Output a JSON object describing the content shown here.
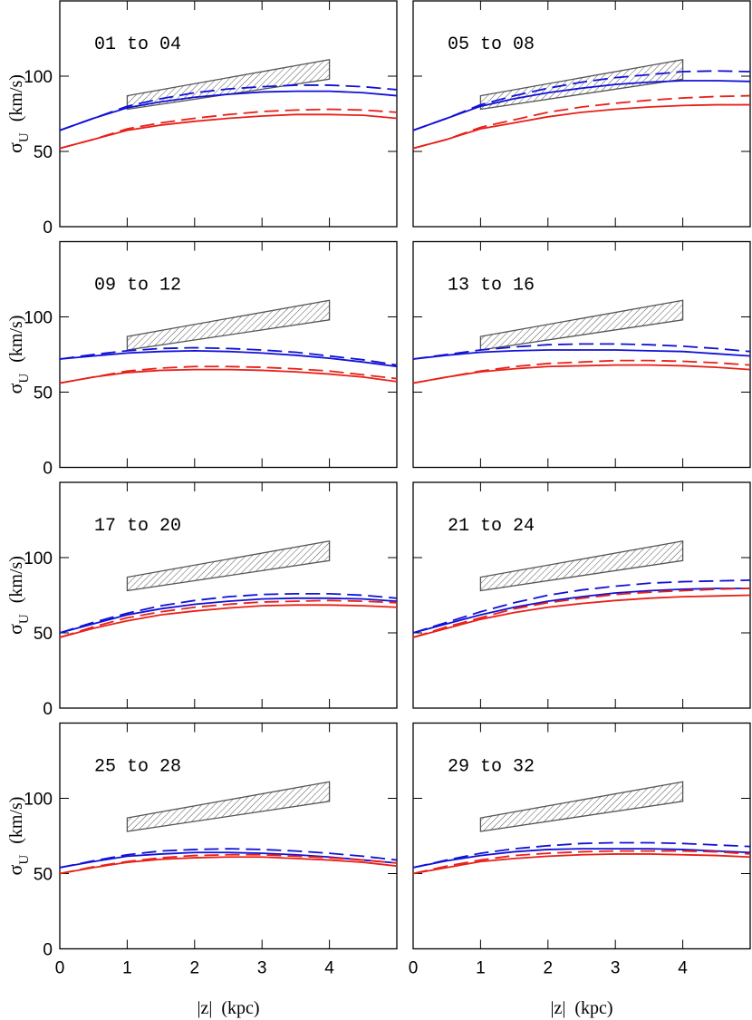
{
  "chart_data": [
    {
      "type": "line",
      "title": "01 to 04",
      "y_label": {
        "symbol": "σ",
        "subscript": "U",
        "unit": "(km/s)"
      },
      "show_xtick_labels": false,
      "show_ytick_labels": true,
      "x": [
        0,
        0.5,
        1,
        1.5,
        2,
        2.5,
        3,
        3.5,
        4,
        4.5,
        5
      ],
      "xlim": [
        0,
        5
      ],
      "ylim": [
        0,
        150
      ],
      "xticks": [
        0,
        1,
        2,
        3,
        4
      ],
      "yticks": [
        0,
        50,
        100
      ],
      "band": {
        "x": [
          1,
          4
        ],
        "lower": [
          78,
          98
        ],
        "upper": [
          87,
          111
        ],
        "color": "#555555"
      },
      "series": [
        {
          "color": "#1010d8",
          "dashed": false,
          "values": [
            64,
            72,
            79,
            83,
            86,
            88,
            89.5,
            90,
            90,
            89,
            87
          ]
        },
        {
          "color": "#1010d8",
          "dashed": true,
          "values": [
            64,
            72,
            80,
            85,
            89,
            91.5,
            93,
            94,
            94,
            93,
            91
          ]
        },
        {
          "color": "#e82018",
          "dashed": false,
          "values": [
            52,
            58,
            64,
            67.5,
            70,
            72,
            73.5,
            74.5,
            74.5,
            74,
            72
          ]
        },
        {
          "color": "#e82018",
          "dashed": true,
          "values": [
            52,
            58,
            65,
            69,
            72,
            74.5,
            76.5,
            77.5,
            78,
            77.5,
            76
          ]
        }
      ]
    },
    {
      "type": "line",
      "title": "05 to 08",
      "show_xtick_labels": false,
      "show_ytick_labels": false,
      "x": [
        0,
        0.5,
        1,
        1.5,
        2,
        2.5,
        3,
        3.5,
        4,
        4.5,
        5
      ],
      "xlim": [
        0,
        5
      ],
      "ylim": [
        0,
        150
      ],
      "xticks": [
        0,
        1,
        2,
        3,
        4
      ],
      "yticks": [
        0,
        50,
        100
      ],
      "band": {
        "x": [
          1,
          4
        ],
        "lower": [
          78,
          98
        ],
        "upper": [
          87,
          111
        ],
        "color": "#555555"
      },
      "series": [
        {
          "color": "#1010d8",
          "dashed": false,
          "values": [
            64,
            72,
            80,
            85,
            89,
            92,
            94.5,
            96,
            97,
            97,
            96.5
          ]
        },
        {
          "color": "#1010d8",
          "dashed": true,
          "values": [
            64,
            72,
            81,
            87,
            92,
            96,
            99,
            101,
            103,
            103.5,
            103
          ]
        },
        {
          "color": "#e82018",
          "dashed": false,
          "values": [
            52,
            58,
            65,
            69,
            73,
            76,
            78,
            79.5,
            80.5,
            81,
            81
          ]
        },
        {
          "color": "#e82018",
          "dashed": true,
          "values": [
            52,
            58,
            66,
            71,
            76,
            79.5,
            82,
            84,
            85.5,
            86.5,
            87
          ]
        }
      ]
    },
    {
      "type": "line",
      "title": "09 to 12",
      "y_label": {
        "symbol": "σ",
        "subscript": "U",
        "unit": "(km/s)"
      },
      "show_xtick_labels": false,
      "show_ytick_labels": true,
      "x": [
        0,
        0.5,
        1,
        1.5,
        2,
        2.5,
        3,
        3.5,
        4,
        4.5,
        5
      ],
      "xlim": [
        0,
        5
      ],
      "ylim": [
        0,
        150
      ],
      "xticks": [
        0,
        1,
        2,
        3,
        4
      ],
      "yticks": [
        0,
        50,
        100
      ],
      "band": {
        "x": [
          1,
          4
        ],
        "lower": [
          78,
          98
        ],
        "upper": [
          87,
          111
        ],
        "color": "#555555"
      },
      "series": [
        {
          "color": "#1010d8",
          "dashed": false,
          "values": [
            72,
            74,
            76,
            77,
            77.5,
            77,
            76,
            74.5,
            72.5,
            70,
            67
          ]
        },
        {
          "color": "#1010d8",
          "dashed": true,
          "values": [
            72,
            75,
            77.5,
            79,
            79.5,
            79,
            78,
            76.5,
            74,
            71.5,
            68
          ]
        },
        {
          "color": "#e82018",
          "dashed": false,
          "values": [
            56,
            60,
            63,
            64.5,
            65,
            65,
            64.5,
            63.5,
            62,
            60,
            57
          ]
        },
        {
          "color": "#e82018",
          "dashed": true,
          "values": [
            56,
            60,
            64,
            66,
            67,
            67,
            66.5,
            65.5,
            64,
            61.5,
            59
          ]
        }
      ]
    },
    {
      "type": "line",
      "title": "13 to 16",
      "show_xtick_labels": false,
      "show_ytick_labels": false,
      "x": [
        0,
        0.5,
        1,
        1.5,
        2,
        2.5,
        3,
        3.5,
        4,
        4.5,
        5
      ],
      "xlim": [
        0,
        5
      ],
      "ylim": [
        0,
        150
      ],
      "xticks": [
        0,
        1,
        2,
        3,
        4
      ],
      "yticks": [
        0,
        50,
        100
      ],
      "band": {
        "x": [
          1,
          4
        ],
        "lower": [
          78,
          98
        ],
        "upper": [
          87,
          111
        ],
        "color": "#555555"
      },
      "series": [
        {
          "color": "#1010d8",
          "dashed": false,
          "values": [
            72,
            74.5,
            76.5,
            77.5,
            78,
            78,
            78,
            77.5,
            77,
            75.5,
            74
          ]
        },
        {
          "color": "#1010d8",
          "dashed": true,
          "values": [
            72,
            75,
            78,
            80,
            81.5,
            82,
            82,
            81.5,
            80.5,
            79,
            77
          ]
        },
        {
          "color": "#e82018",
          "dashed": false,
          "values": [
            56,
            60,
            63.5,
            65.5,
            67,
            67.5,
            68,
            68,
            67.5,
            66.5,
            65
          ]
        },
        {
          "color": "#e82018",
          "dashed": true,
          "values": [
            56,
            60,
            64,
            67,
            69,
            70,
            71,
            71,
            70.5,
            69.5,
            68
          ]
        }
      ]
    },
    {
      "type": "line",
      "title": "17 to 20",
      "y_label": {
        "symbol": "σ",
        "subscript": "U",
        "unit": "(km/s)"
      },
      "show_xtick_labels": false,
      "show_ytick_labels": true,
      "x": [
        0,
        0.5,
        1,
        1.5,
        2,
        2.5,
        3,
        3.5,
        4,
        4.5,
        5
      ],
      "xlim": [
        0,
        5
      ],
      "ylim": [
        0,
        150
      ],
      "xticks": [
        0,
        1,
        2,
        3,
        4
      ],
      "yticks": [
        0,
        50,
        100
      ],
      "band": {
        "x": [
          1,
          4
        ],
        "lower": [
          78,
          98
        ],
        "upper": [
          87,
          111
        ],
        "color": "#555555"
      },
      "series": [
        {
          "color": "#1010d8",
          "dashed": false,
          "values": [
            50,
            56,
            62,
            66,
            69,
            71,
            72.5,
            73,
            73,
            72.5,
            71
          ]
        },
        {
          "color": "#1010d8",
          "dashed": true,
          "values": [
            50,
            57,
            63,
            68,
            71.5,
            74,
            75.5,
            76,
            76,
            75,
            73
          ]
        },
        {
          "color": "#e82018",
          "dashed": false,
          "values": [
            47,
            53,
            58,
            62,
            64.5,
            66.5,
            68,
            68.5,
            68.5,
            68,
            67
          ]
        },
        {
          "color": "#e82018",
          "dashed": true,
          "values": [
            47,
            54,
            60,
            64,
            67,
            69,
            70.5,
            71,
            71.5,
            71,
            70
          ]
        }
      ]
    },
    {
      "type": "line",
      "title": "21 to 24",
      "show_xtick_labels": false,
      "show_ytick_labels": false,
      "x": [
        0,
        0.5,
        1,
        1.5,
        2,
        2.5,
        3,
        3.5,
        4,
        4.5,
        5
      ],
      "xlim": [
        0,
        5
      ],
      "ylim": [
        0,
        150
      ],
      "xticks": [
        0,
        1,
        2,
        3,
        4
      ],
      "yticks": [
        0,
        50,
        100
      ],
      "band": {
        "x": [
          1,
          4
        ],
        "lower": [
          78,
          98
        ],
        "upper": [
          87,
          111
        ],
        "color": "#555555"
      },
      "series": [
        {
          "color": "#1010d8",
          "dashed": false,
          "values": [
            50,
            56,
            62,
            67,
            71,
            74,
            76.5,
            78,
            79,
            79.5,
            79.5
          ]
        },
        {
          "color": "#1010d8",
          "dashed": true,
          "values": [
            50,
            57,
            64,
            70,
            75,
            78.5,
            81,
            83,
            84,
            84.5,
            85
          ]
        },
        {
          "color": "#e82018",
          "dashed": false,
          "values": [
            47,
            53,
            59,
            63.5,
            67,
            69.5,
            71.5,
            73,
            74,
            74.5,
            75
          ]
        },
        {
          "color": "#e82018",
          "dashed": true,
          "values": [
            47,
            54,
            60,
            66,
            70,
            73,
            75.5,
            77,
            78,
            79,
            79.5
          ]
        }
      ]
    },
    {
      "type": "line",
      "title": "25 to 28",
      "y_label": {
        "symbol": "σ",
        "subscript": "U",
        "unit": "(km/s)"
      },
      "x_label": "|z|  (kpc)",
      "show_xtick_labels": true,
      "show_ytick_labels": true,
      "x": [
        0,
        0.5,
        1,
        1.5,
        2,
        2.5,
        3,
        3.5,
        4,
        4.5,
        5
      ],
      "xlim": [
        0,
        5
      ],
      "ylim": [
        0,
        150
      ],
      "xticks": [
        0,
        1,
        2,
        3,
        4
      ],
      "yticks": [
        0,
        50,
        100
      ],
      "band": {
        "x": [
          1,
          4
        ],
        "lower": [
          78,
          98
        ],
        "upper": [
          87,
          111
        ],
        "color": "#555555"
      },
      "series": [
        {
          "color": "#1010d8",
          "dashed": false,
          "values": [
            54,
            58,
            61.5,
            63,
            64,
            64,
            63.5,
            62.5,
            61,
            59,
            57
          ]
        },
        {
          "color": "#1010d8",
          "dashed": true,
          "values": [
            54,
            58.5,
            62.5,
            65,
            66,
            66.5,
            66,
            65,
            63.5,
            61.5,
            59
          ]
        },
        {
          "color": "#e82018",
          "dashed": false,
          "values": [
            50,
            54,
            57.5,
            59.5,
            60.5,
            61,
            61,
            60,
            59,
            57.5,
            55
          ]
        },
        {
          "color": "#e82018",
          "dashed": true,
          "values": [
            50,
            54.5,
            58,
            60.5,
            62,
            62.5,
            62.5,
            61.5,
            60.5,
            59,
            57
          ]
        }
      ]
    },
    {
      "type": "line",
      "title": "29 to 32",
      "x_label": "|z|  (kpc)",
      "show_xtick_labels": true,
      "show_ytick_labels": false,
      "x": [
        0,
        0.5,
        1,
        1.5,
        2,
        2.5,
        3,
        3.5,
        4,
        4.5,
        5
      ],
      "xlim": [
        0,
        5
      ],
      "ylim": [
        0,
        150
      ],
      "xticks": [
        0,
        1,
        2,
        3,
        4
      ],
      "yticks": [
        0,
        50,
        100
      ],
      "band": {
        "x": [
          1,
          4
        ],
        "lower": [
          78,
          98
        ],
        "upper": [
          87,
          111
        ],
        "color": "#555555"
      },
      "series": [
        {
          "color": "#1010d8",
          "dashed": false,
          "values": [
            54,
            58.5,
            62,
            64.5,
            66,
            66.5,
            66.5,
            66.5,
            66,
            65,
            64
          ]
        },
        {
          "color": "#1010d8",
          "dashed": true,
          "values": [
            54,
            59,
            63.5,
            66.5,
            68.5,
            70,
            70.5,
            70.5,
            70,
            69,
            68
          ]
        },
        {
          "color": "#e82018",
          "dashed": false,
          "values": [
            50,
            54,
            58,
            60,
            61.5,
            62.5,
            63,
            63,
            62.5,
            62,
            61
          ]
        },
        {
          "color": "#e82018",
          "dashed": true,
          "values": [
            50,
            55,
            59,
            62,
            63.5,
            64.5,
            65,
            65,
            65,
            64.5,
            63
          ]
        }
      ]
    }
  ]
}
